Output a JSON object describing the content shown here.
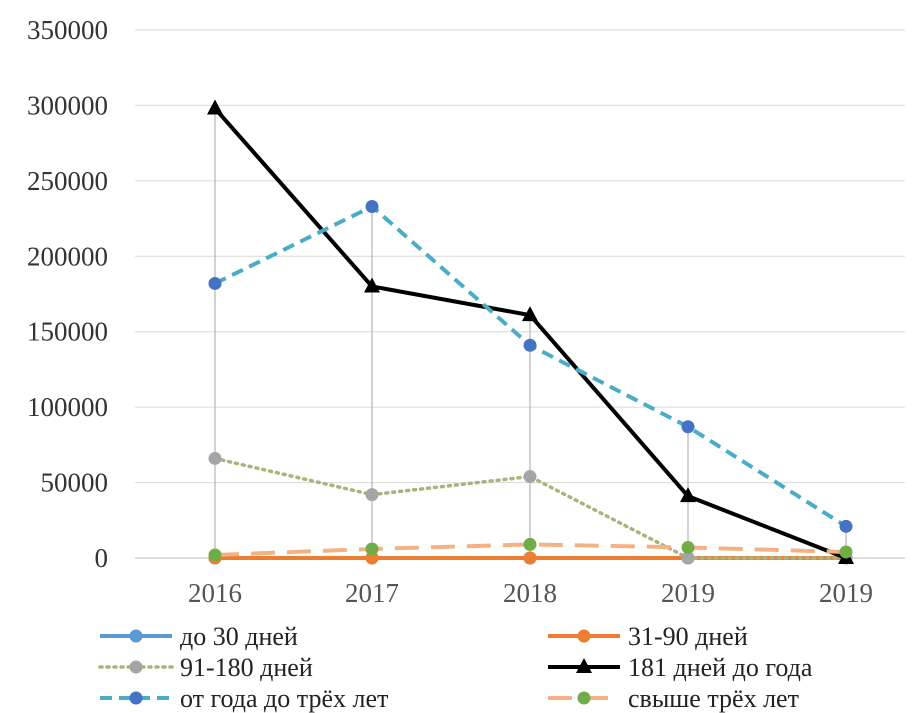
{
  "chart_data": {
    "type": "line",
    "categories": [
      "2016",
      "2017",
      "2018",
      "2019",
      "2019"
    ],
    "ylim": [
      0,
      350000
    ],
    "yticks": [
      "0",
      "50000",
      "100000",
      "150000",
      "200000",
      "250000",
      "300000",
      "350000"
    ],
    "grid": true,
    "legend_position": "bottom",
    "series": [
      {
        "name": "до 30 дней",
        "values": [
          0,
          0,
          0,
          0,
          0
        ],
        "color": "#5B9BD5",
        "style": "solid",
        "marker": "circle"
      },
      {
        "name": "31-90 дней",
        "values": [
          0,
          0,
          0,
          0,
          0
        ],
        "color": "#ED7D31",
        "style": "solid",
        "marker": "circle"
      },
      {
        "name": "91-180 дней",
        "values": [
          66000,
          42000,
          54000,
          0,
          0
        ],
        "color": "#A9B47C",
        "marker_color": "#A5A5A5",
        "style": "dotted",
        "marker": "circle"
      },
      {
        "name": "181 дней до года",
        "values": [
          298000,
          180000,
          161000,
          41000,
          0
        ],
        "color": "#000000",
        "style": "solid",
        "marker": "triangle"
      },
      {
        "name": "от года до трёх лет",
        "values": [
          182000,
          233000,
          141000,
          87000,
          21000
        ],
        "color": "#4BACC6",
        "marker_color": "#4472C4",
        "style": "dashed",
        "marker": "circle"
      },
      {
        "name": "свыше трёх лет",
        "values": [
          2000,
          6000,
          9000,
          7000,
          4000
        ],
        "color": "#F4B183",
        "marker_color": "#70AD47",
        "style": "longdash",
        "marker": "circle"
      }
    ]
  }
}
